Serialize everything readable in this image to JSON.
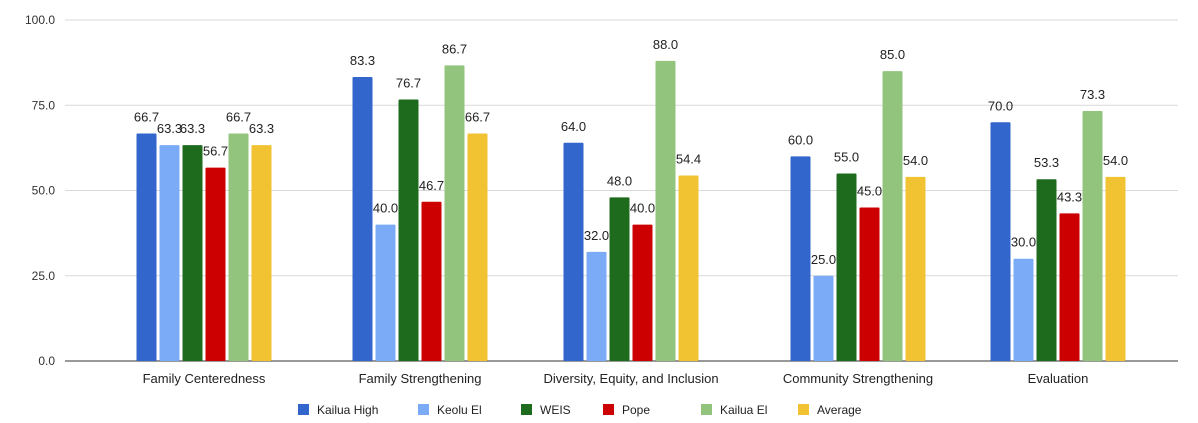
{
  "chart_data": {
    "type": "bar",
    "title": "",
    "xlabel": "",
    "ylabel": "",
    "ylim": [
      0,
      100
    ],
    "yticks": [
      "0.0",
      "25.0",
      "50.0",
      "75.0",
      "100.0"
    ],
    "ytick_values": [
      0,
      25,
      50,
      75,
      100
    ],
    "grid": true,
    "legend_position": "bottom",
    "categories": [
      "Family Centeredness",
      "Family Strengthening",
      "Diversity, Equity, and Inclusion",
      "Community Strengthening",
      "Evaluation"
    ],
    "series": [
      {
        "name": "Kailua High",
        "color": "#3366cc",
        "values": [
          66.7,
          83.3,
          64.0,
          60.0,
          70.0
        ],
        "labels": [
          "66.7",
          "83.3",
          "64.0",
          "60.0",
          "70.0"
        ]
      },
      {
        "name": "Keolu El",
        "color": "#7baaf7",
        "values": [
          63.3,
          40.0,
          32.0,
          25.0,
          30.0
        ],
        "labels": [
          "63.3",
          "40.0",
          "32.0",
          "25.0",
          "30.0"
        ]
      },
      {
        "name": "WEIS",
        "color": "#1e6b1e",
        "values": [
          63.3,
          76.7,
          48.0,
          55.0,
          53.3
        ],
        "labels": [
          "63.3",
          "76.7",
          "48.0",
          "55.0",
          "53.3"
        ]
      },
      {
        "name": "Pope",
        "color": "#cc0000",
        "values": [
          56.7,
          46.7,
          40.0,
          45.0,
          43.3
        ],
        "labels": [
          "56.7",
          "46.7",
          "40.0",
          "45.0",
          "43.3"
        ]
      },
      {
        "name": "Kailua El",
        "color": "#93c47d",
        "values": [
          66.7,
          86.7,
          88.0,
          85.0,
          73.3
        ],
        "labels": [
          "66.7",
          "86.7",
          "88.0",
          "85.0",
          "73.3"
        ]
      },
      {
        "name": "Average",
        "color": "#f1c232",
        "values": [
          63.3,
          66.7,
          54.4,
          54.0,
          54.0
        ],
        "labels": [
          "63.3",
          "66.7",
          "54.4",
          "54.0",
          "54.0"
        ]
      }
    ]
  }
}
